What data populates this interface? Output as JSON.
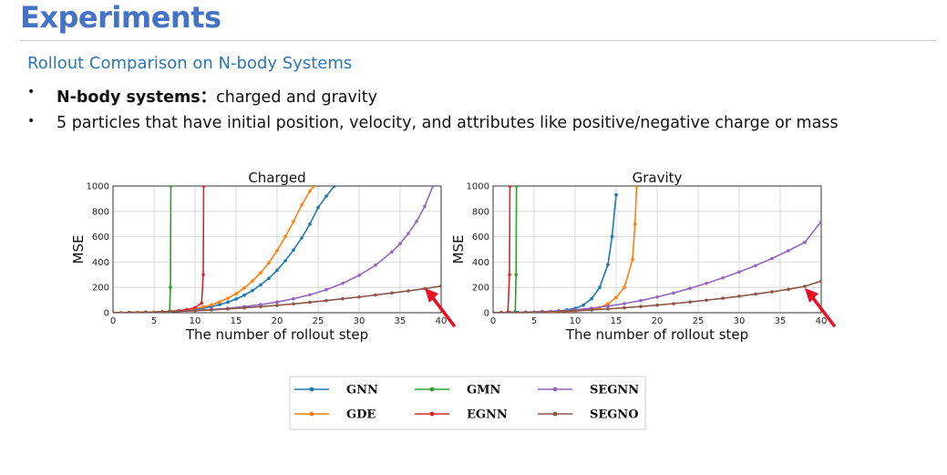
{
  "slide": {
    "title": "Experiments",
    "subtitle": "Rollout Comparison on N-body Systems",
    "bullets": [
      {
        "bold": "N-body systems",
        "sep": "：",
        "text": "charged and gravity"
      },
      {
        "bold": "",
        "sep": "",
        "text": "5 particles that have initial position, velocity, and attributes like positive/negative charge or mass"
      }
    ],
    "bullet_glyph": "•"
  },
  "chart_data": [
    {
      "type": "line",
      "title": "Charged",
      "xlabel": "The number of rollout step",
      "ylabel": "MSE",
      "xlim": [
        0,
        40
      ],
      "ylim": [
        0,
        1000
      ],
      "xticks": [
        "0",
        "5",
        "10",
        "15",
        "20",
        "25",
        "30",
        "35",
        "40"
      ],
      "yticks": [
        "0",
        "200",
        "400",
        "600",
        "800",
        "1000"
      ],
      "grid": true,
      "series": [
        {
          "name": "GNN",
          "color": "#1f77b4",
          "x": [
            0,
            1,
            2,
            3,
            4,
            5,
            6,
            7,
            8,
            9,
            10,
            11,
            12,
            13,
            14,
            15,
            16,
            17,
            18,
            19,
            20,
            21,
            22,
            23,
            24,
            25,
            26,
            27
          ],
          "y": [
            0,
            0,
            1,
            2,
            3,
            5,
            7,
            10,
            14,
            19,
            26,
            35,
            48,
            64,
            83,
            108,
            138,
            175,
            220,
            272,
            335,
            410,
            495,
            590,
            700,
            830,
            920,
            1000
          ]
        },
        {
          "name": "GDE",
          "color": "#ff7f0e",
          "x": [
            0,
            1,
            2,
            3,
            4,
            5,
            6,
            7,
            8,
            9,
            10,
            11,
            12,
            13,
            14,
            15,
            16,
            17,
            18,
            19,
            20,
            21,
            22,
            23,
            24,
            24.5
          ],
          "y": [
            0,
            0,
            1,
            2,
            3,
            5,
            8,
            12,
            17,
            24,
            33,
            45,
            62,
            85,
            115,
            150,
            195,
            250,
            315,
            395,
            490,
            600,
            720,
            850,
            960,
            1000
          ]
        },
        {
          "name": "GMN",
          "color": "#2ca02c",
          "x": [
            0,
            2,
            4,
            6,
            6.9,
            7,
            7.05
          ],
          "y": [
            0,
            1,
            2,
            4,
            10,
            200,
            1000
          ]
        },
        {
          "name": "EGNN",
          "color": "#d62728",
          "x": [
            0,
            2,
            4,
            6,
            8,
            9,
            10,
            10.8,
            11,
            11.05
          ],
          "y": [
            0,
            1,
            3,
            6,
            15,
            25,
            40,
            75,
            300,
            1000
          ]
        },
        {
          "name": "SEGNN",
          "color": "#9467bd",
          "x": [
            0,
            2,
            4,
            6,
            8,
            10,
            12,
            14,
            16,
            18,
            20,
            22,
            24,
            26,
            28,
            30,
            32,
            34,
            35,
            36,
            37,
            38,
            39
          ],
          "y": [
            0,
            2,
            4,
            7,
            11,
            17,
            25,
            35,
            48,
            64,
            84,
            110,
            142,
            182,
            232,
            295,
            375,
            480,
            545,
            625,
            720,
            840,
            1000
          ]
        },
        {
          "name": "SEGNO",
          "color": "#8c564b",
          "x": [
            0,
            2,
            4,
            6,
            8,
            10,
            12,
            14,
            16,
            18,
            20,
            22,
            24,
            26,
            28,
            30,
            32,
            34,
            36,
            38,
            40
          ],
          "y": [
            0,
            2,
            4,
            7,
            11,
            16,
            22,
            30,
            38,
            48,
            58,
            70,
            82,
            96,
            110,
            124,
            140,
            156,
            172,
            190,
            210
          ]
        }
      ]
    },
    {
      "type": "line",
      "title": "Gravity",
      "xlabel": "The number of rollout step",
      "ylabel": "MSE",
      "xlim": [
        0,
        40
      ],
      "ylim": [
        0,
        1000
      ],
      "xticks": [
        "0",
        "5",
        "10",
        "15",
        "20",
        "25",
        "30",
        "35",
        "40"
      ],
      "yticks": [
        "0",
        "200",
        "400",
        "600",
        "800",
        "1000"
      ],
      "grid": true,
      "series": [
        {
          "name": "GNN",
          "color": "#1f77b4",
          "x": [
            0,
            1,
            2,
            3,
            4,
            5,
            6,
            7,
            8,
            9,
            10,
            11,
            12,
            13,
            14,
            14.5,
            15
          ],
          "y": [
            0,
            0,
            1,
            2,
            3,
            4,
            6,
            9,
            14,
            22,
            35,
            60,
            110,
            200,
            380,
            600,
            930
          ]
        },
        {
          "name": "GDE",
          "color": "#ff7f0e",
          "x": [
            0,
            2,
            4,
            6,
            8,
            10,
            12,
            13,
            14,
            15,
            16,
            17,
            17.3,
            17.5
          ],
          "y": [
            0,
            1,
            2,
            4,
            7,
            13,
            25,
            40,
            70,
            120,
            200,
            420,
            700,
            1000
          ]
        },
        {
          "name": "GMN",
          "color": "#2ca02c",
          "x": [
            0,
            1,
            2,
            2.7,
            2.8,
            2.85
          ],
          "y": [
            0,
            1,
            2,
            8,
            300,
            1000
          ]
        },
        {
          "name": "EGNN",
          "color": "#d62728",
          "x": [
            0,
            1,
            1.8,
            2.0,
            2.05
          ],
          "y": [
            0,
            1,
            5,
            300,
            1000
          ]
        },
        {
          "name": "SEGNN",
          "color": "#9467bd",
          "x": [
            0,
            2,
            4,
            6,
            8,
            10,
            12,
            14,
            16,
            18,
            20,
            22,
            24,
            26,
            28,
            30,
            32,
            34,
            36,
            38,
            40
          ],
          "y": [
            0,
            2,
            5,
            9,
            15,
            24,
            36,
            52,
            72,
            96,
            124,
            156,
            192,
            232,
            275,
            322,
            372,
            428,
            490,
            555,
            720
          ]
        },
        {
          "name": "SEGNO",
          "color": "#8c564b",
          "x": [
            0,
            2,
            4,
            6,
            8,
            10,
            12,
            14,
            16,
            18,
            20,
            22,
            24,
            26,
            28,
            30,
            32,
            34,
            36,
            38,
            40
          ],
          "y": [
            0,
            1,
            3,
            6,
            10,
            15,
            22,
            30,
            39,
            49,
            60,
            72,
            85,
            99,
            114,
            130,
            147,
            165,
            185,
            208,
            250
          ]
        }
      ]
    }
  ],
  "legend": [
    {
      "name": "GNN",
      "color": "#1f77b4"
    },
    {
      "name": "GMN",
      "color": "#2ca02c"
    },
    {
      "name": "SEGNN",
      "color": "#9467bd"
    },
    {
      "name": "GDE",
      "color": "#ff7f0e"
    },
    {
      "name": "EGNN",
      "color": "#d62728"
    },
    {
      "name": "SEGNO",
      "color": "#8c564b"
    }
  ],
  "annotation_color": "#e81123"
}
